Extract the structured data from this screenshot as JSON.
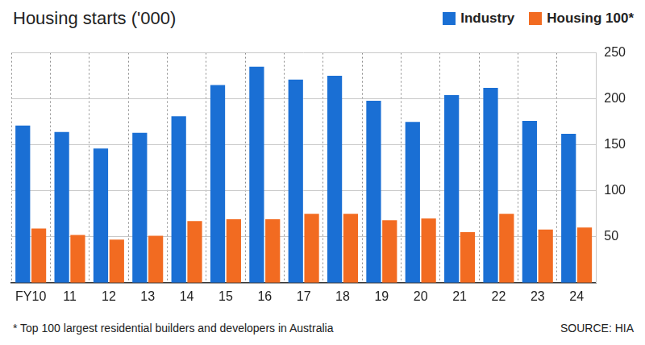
{
  "chart_data": {
    "type": "bar",
    "title": "Housing starts ('000)",
    "categories": [
      "FY10",
      "11",
      "12",
      "13",
      "14",
      "15",
      "16",
      "17",
      "18",
      "19",
      "20",
      "21",
      "22",
      "23",
      "24"
    ],
    "series": [
      {
        "name": "Industry",
        "color": "#1a6fd4",
        "values": [
          171,
          164,
          146,
          163,
          181,
          215,
          235,
          221,
          225,
          198,
          175,
          204,
          212,
          176,
          162
        ]
      },
      {
        "name": "Housing 100*",
        "color": "#f26b21",
        "values": [
          59,
          52,
          47,
          51,
          67,
          69,
          69,
          75,
          75,
          68,
          70,
          55,
          75,
          58,
          60
        ]
      }
    ],
    "ylim": [
      0,
      250
    ],
    "yticks": [
      50,
      100,
      150,
      200,
      250
    ],
    "grid": true,
    "legend": "upper right",
    "footnote": "* Top 100 largest residential builders and developers in Australia",
    "source": "SOURCE: HIA"
  }
}
